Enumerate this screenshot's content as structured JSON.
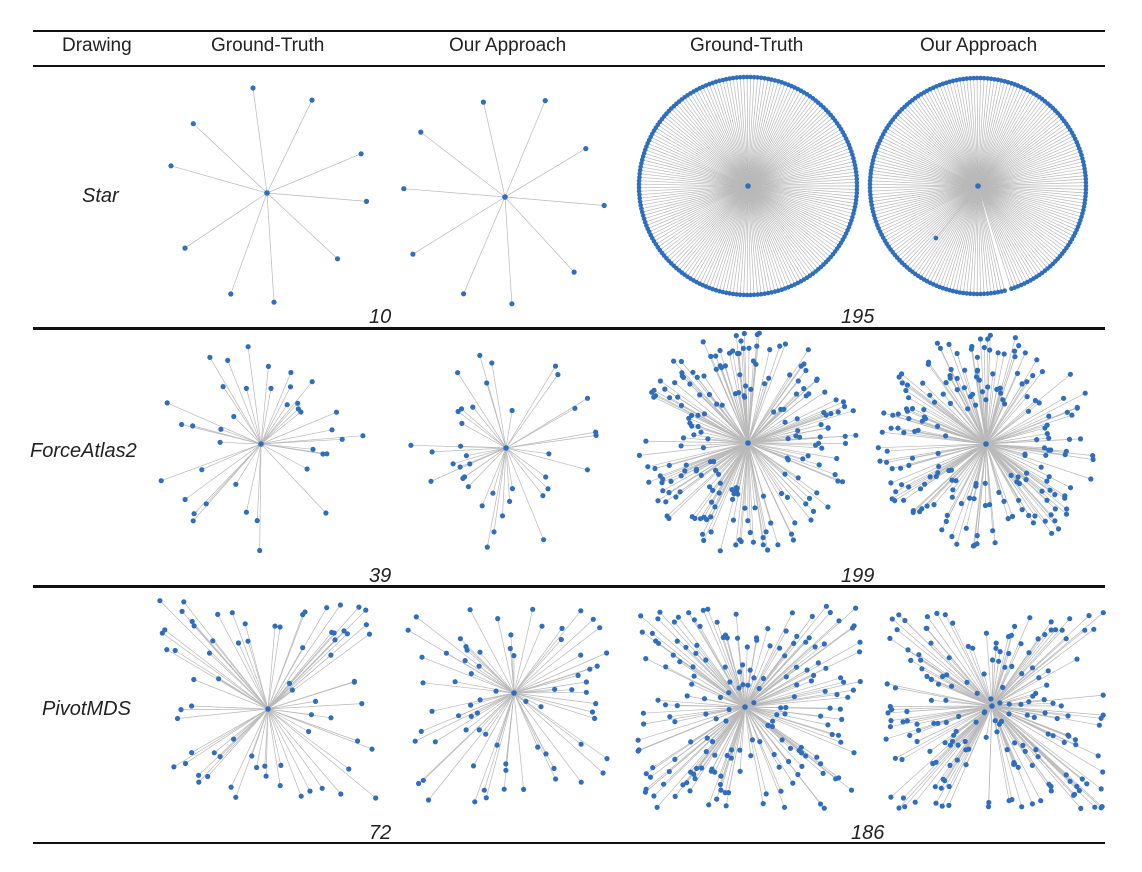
{
  "table": {
    "header": {
      "drawing": "Drawing",
      "col1": "Ground-Truth",
      "col2": "Our Approach",
      "col3": "Ground-Truth",
      "col4": "Our Approach"
    },
    "rows": [
      {
        "label": "Star",
        "count_left": "10",
        "count_right": "195"
      },
      {
        "label": "ForceAtlas2",
        "count_left": "39",
        "count_right": "199"
      },
      {
        "label": "PivotMDS",
        "count_left": "72",
        "count_right": "186"
      }
    ]
  },
  "colors": {
    "node": "#2f6ebd",
    "edge": "#b9b9b9",
    "rule": "#111111"
  }
}
